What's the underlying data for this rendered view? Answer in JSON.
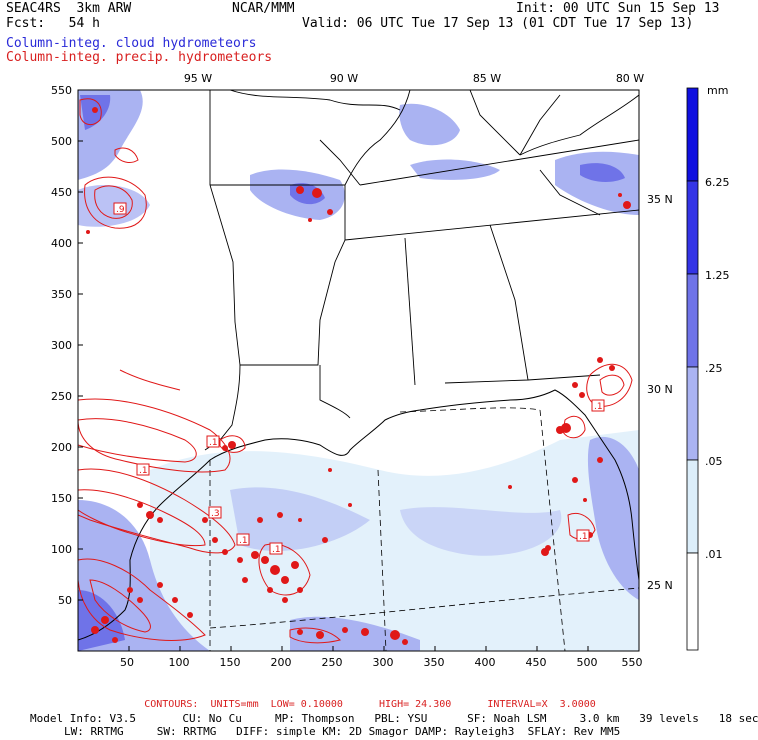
{
  "header": {
    "left_line1": "SEAC4RS  3km ARW",
    "left_line2": "Fcst:   54 h",
    "center": "NCAR/MMM",
    "init": "Init: 00 UTC Sun 15 Sep 13",
    "valid": "Valid: 06 UTC Tue 17 Sep 13 (01 CDT Tue 17 Sep 13)"
  },
  "legend": {
    "cloud": "Column-integ. cloud hydrometeors",
    "precip": "Column-integ. precip. hydrometeors"
  },
  "map": {
    "x_ticks": [
      "50",
      "100",
      "150",
      "200",
      "250",
      "300",
      "350",
      "400",
      "450",
      "500",
      "550"
    ],
    "y_ticks": [
      "550",
      "500",
      "450",
      "400",
      "350",
      "300",
      "250",
      "200",
      "150",
      "100",
      "50"
    ],
    "lon_labels": [
      "95 W",
      "90 W",
      "85 W",
      "80 W"
    ],
    "lat_labels": [
      "35 N",
      "30 N",
      "25 N"
    ],
    "contour_labels": [
      ".9",
      ".1",
      ".1",
      ".1",
      ".3",
      ".1",
      ".1",
      ".1"
    ],
    "colors": {
      "cloud_light": "#dceefa",
      "cloud_mid": "#aab3f2",
      "cloud_dark": "#6f73e8",
      "precip": "#e01818"
    }
  },
  "colorbar": {
    "unit": "mm",
    "levels": [
      "6.25",
      "1.25",
      ".25",
      ".05",
      ".01"
    ],
    "colors": [
      "#1010e0",
      "#3434e6",
      "#6f73e8",
      "#aab3f2",
      "#dceefa",
      "#ffffff"
    ]
  },
  "footer": {
    "contours": "CONTOURS:  UNITS=mm  LOW= 0.10000      HIGH= 24.300      INTERVAL=X  3.0000",
    "model_line1": "Model Info: V3.5       CU: No Cu     MP: Thompson   PBL: YSU      SF: Noah LSM     3.0 km   39 levels   18 sec",
    "model_line2": "LW: RRTMG     SW: RRTMG   DIFF: simple KM: 2D Smagor DAMP: Rayleigh3  SFLAY: Rev MM5"
  }
}
